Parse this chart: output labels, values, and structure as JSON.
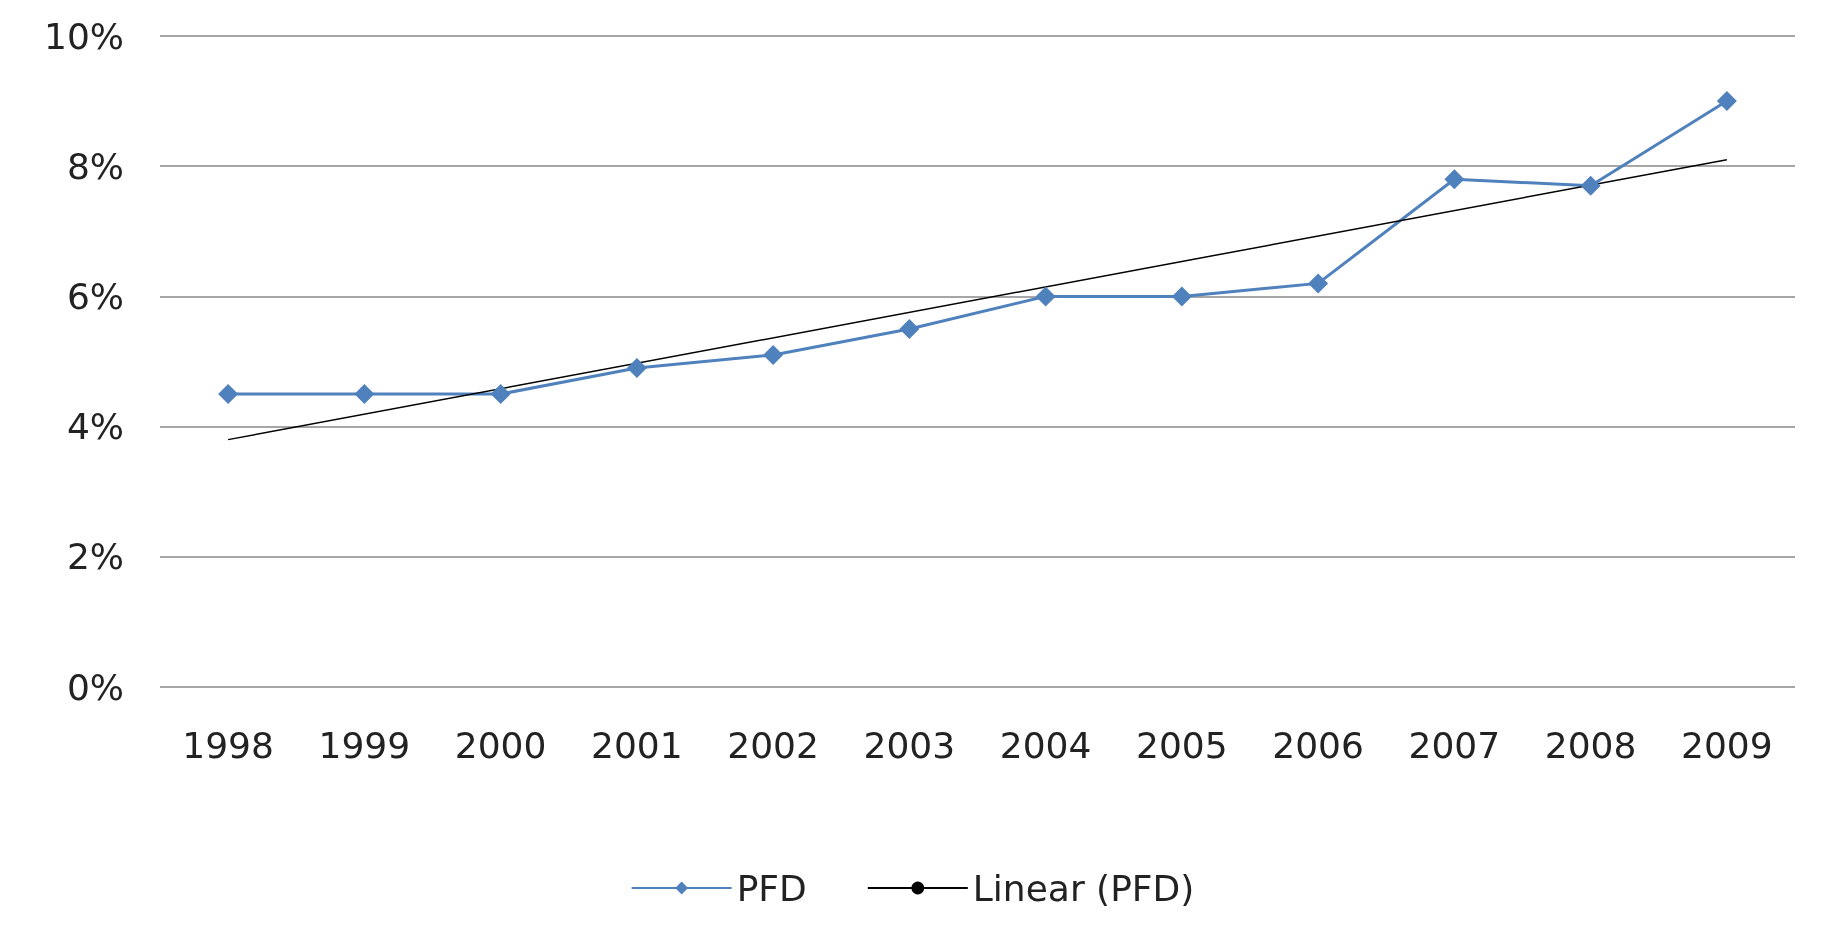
{
  "chart_data": {
    "type": "line",
    "categories": [
      "1998",
      "1999",
      "2000",
      "2001",
      "2002",
      "2003",
      "2004",
      "2005",
      "2006",
      "2007",
      "2008",
      "2009"
    ],
    "series": [
      {
        "name": "PFD",
        "color": "#4f81bd",
        "values": [
          4.5,
          4.5,
          4.5,
          4.9,
          5.1,
          5.5,
          6.0,
          6.0,
          6.2,
          7.8,
          7.7,
          9.0
        ],
        "marker": "diamond"
      },
      {
        "name": "Linear (PFD)",
        "type": "line",
        "color": "#000000",
        "values": [
          3.8,
          null,
          null,
          null,
          null,
          null,
          null,
          null,
          null,
          null,
          null,
          8.1
        ],
        "marker": "none"
      }
    ],
    "ylim": [
      0,
      10
    ],
    "yticks": [
      {
        "value": 0,
        "label": "0%"
      },
      {
        "value": 2,
        "label": "2%"
      },
      {
        "value": 4,
        "label": "4%"
      },
      {
        "value": 6,
        "label": "6%"
      },
      {
        "value": 8,
        "label": "8%"
      },
      {
        "value": 10,
        "label": "10%"
      }
    ],
    "grid": "y",
    "legend": "bottom"
  }
}
